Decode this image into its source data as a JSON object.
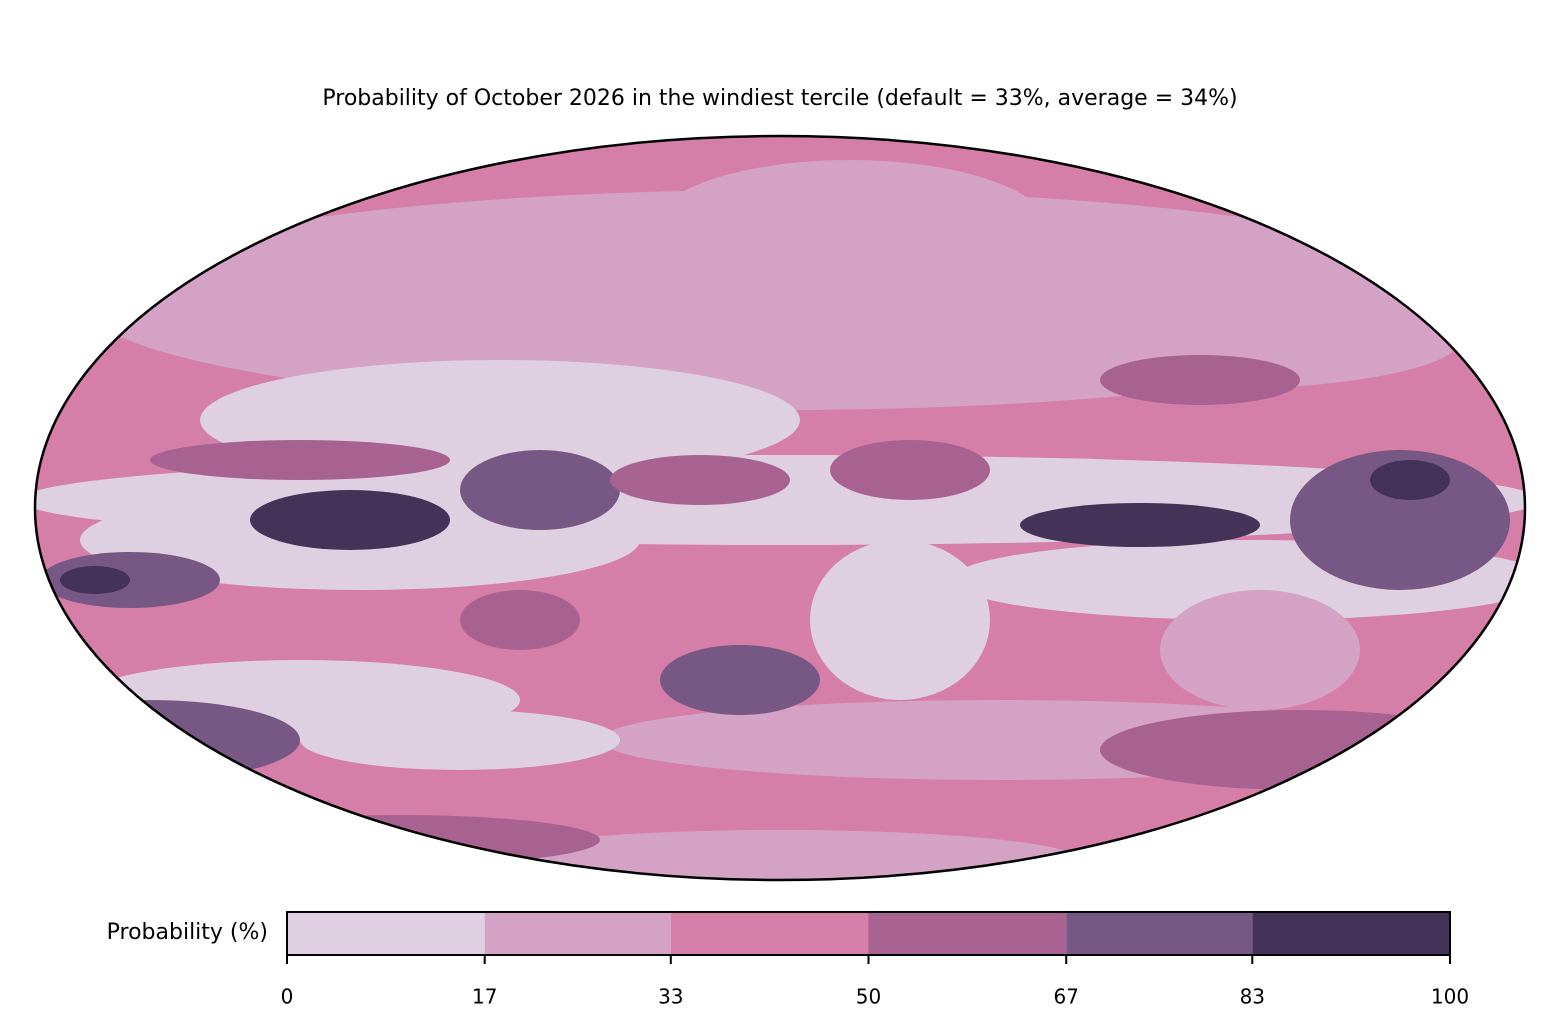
{
  "title": "Probability of October 2026 in the windiest tercile (default = 33%, average = 34%)",
  "colorbar": {
    "label": "Probability (%)",
    "ticks": [
      0,
      17,
      33,
      50,
      67,
      83,
      100
    ],
    "colors": [
      "#dfd0e1",
      "#d4a2c4",
      "#d47ea8",
      "#a86292",
      "#775884",
      "#443359"
    ]
  }
}
